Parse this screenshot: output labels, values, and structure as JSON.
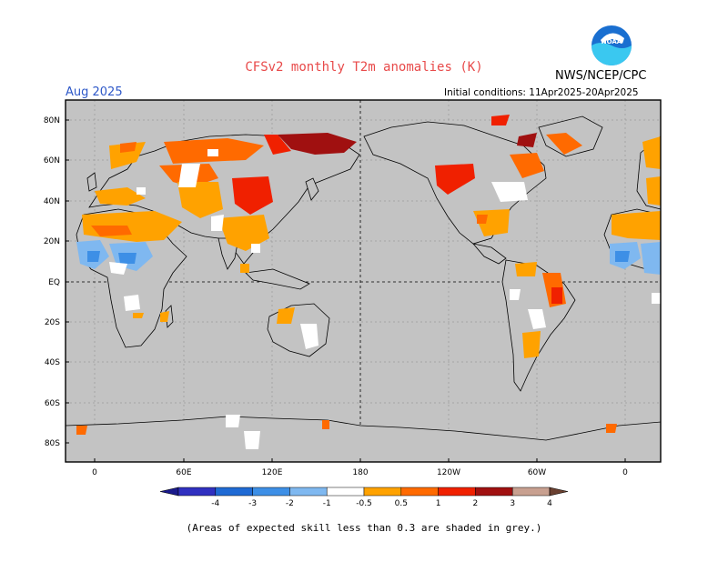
{
  "header": {
    "title": "CFSv2 monthly T2m anomalies (K)",
    "month": "Aug 2025",
    "agency": "NWS/NCEP/CPC",
    "initial_conditions": "Initial conditions: 11Apr2025-20Apr2025",
    "logo_text": "NOAA"
  },
  "map": {
    "lat_labels": [
      "80N",
      "60N",
      "40N",
      "20N",
      "EQ",
      "20S",
      "40S",
      "60S",
      "80S"
    ],
    "lon_labels": [
      "0",
      "60E",
      "120E",
      "180",
      "120W",
      "60W",
      "0"
    ],
    "ocean_color": "#c3c3c3",
    "grid": true
  },
  "colorbar": {
    "labels": [
      "-4",
      "-3",
      "-2",
      "-1",
      "-0.5",
      "0.5",
      "1",
      "2",
      "3",
      "4"
    ],
    "colors": [
      "#1a1a8c",
      "#3030c0",
      "#1f6ad4",
      "#3d8fe6",
      "#7fb8f0",
      "#ffffff",
      "#ffa200",
      "#ff6a00",
      "#f02000",
      "#a01010",
      "#c8a090",
      "#6a4030"
    ]
  },
  "footnote": "(Areas of expected skill less than 0.3 are shaded in grey.)"
}
